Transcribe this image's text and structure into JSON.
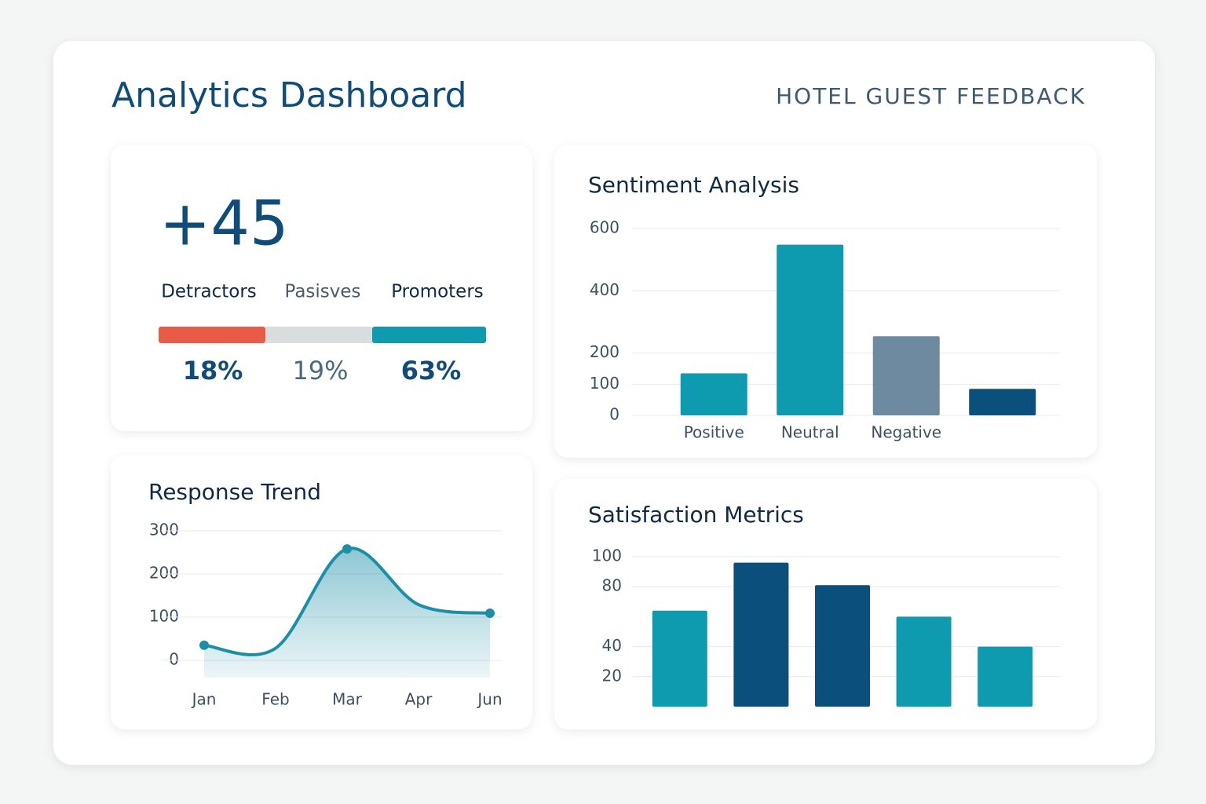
{
  "header": {
    "title": "Analytics Dashboard",
    "subtitle": "HOTEL GUEST FEEDBACK"
  },
  "nps": {
    "score": "+45",
    "segments": [
      {
        "label": "Detractors",
        "percent": "18%"
      },
      {
        "label": "Pasisves",
        "percent": "19%"
      },
      {
        "label": "Promoters",
        "percent": "63%"
      }
    ]
  },
  "chart_data": [
    {
      "type": "bar",
      "title": "Sentiment Analysis",
      "categories": [
        "Positive",
        "Neutral",
        "Negative",
        null
      ],
      "values": [
        135,
        548,
        254,
        85
      ],
      "colors": [
        "#0e9aaf",
        "#0e9aaf",
        "#6d8aa0",
        "#0b4f7c"
      ],
      "ylim": [
        0,
        600
      ],
      "yticks": [
        0,
        100,
        200,
        400,
        600
      ],
      "grid": true
    },
    {
      "type": "bar",
      "title": "Satisfaction Metrics",
      "categories": [
        null,
        null,
        null,
        null,
        null
      ],
      "values": [
        64,
        96,
        81,
        60,
        40
      ],
      "colors": [
        "#0e9aaf",
        "#0b4f7c",
        "#0b4f7c",
        "#0e9aaf",
        "#0e9aaf"
      ],
      "ylim": [
        0,
        100
      ],
      "yticks": [
        20,
        40,
        80,
        100
      ],
      "grid": true
    },
    {
      "type": "line",
      "title": "Response Trend",
      "categories": [
        "Jan",
        "Feb",
        "Mar",
        "Apr",
        "Jun"
      ],
      "values": [
        35,
        28,
        258,
        129,
        109
      ],
      "color": "#1b8fa6",
      "ylim": [
        -40,
        300
      ],
      "yticks": [
        0,
        100,
        200,
        300
      ],
      "grid": true
    }
  ]
}
